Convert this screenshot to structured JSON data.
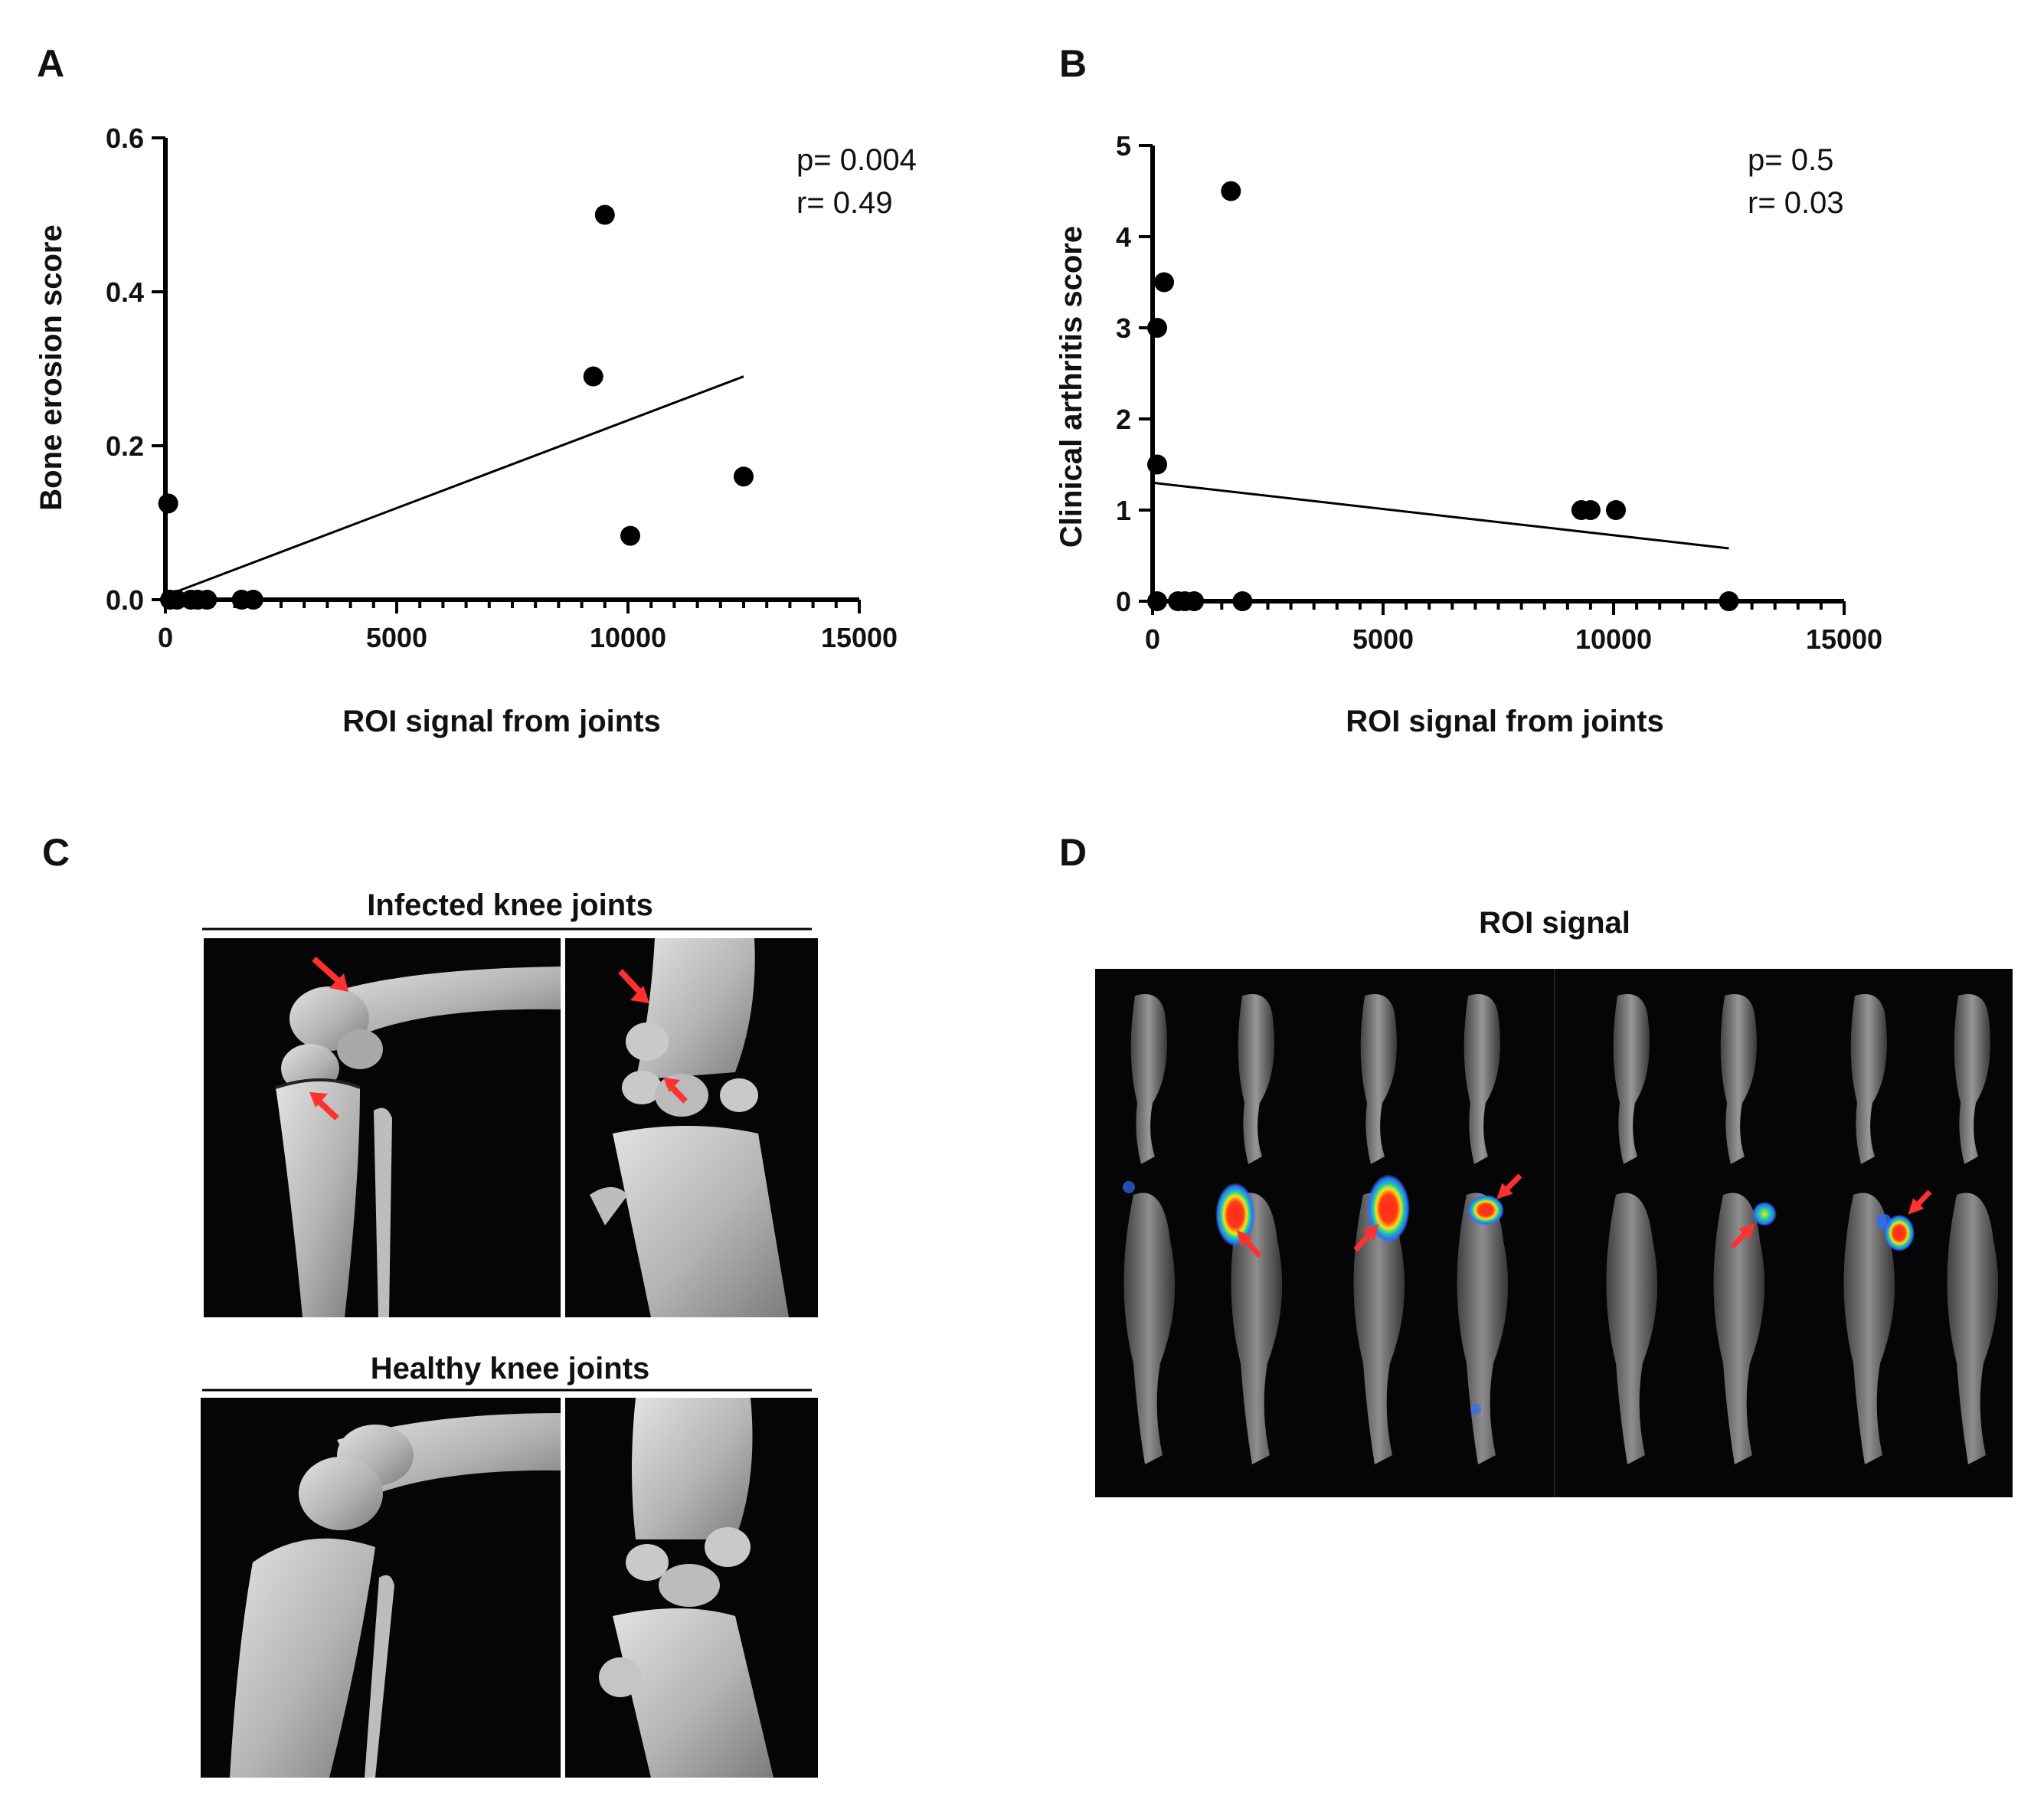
{
  "colors": {
    "points": "#000000",
    "image_background": "#050505",
    "bone": "#bdbdbd",
    "arrow": "#ff3030",
    "heat_low": "#2f6dff",
    "heat_mid": "#18d0a0",
    "heat_high": "#ff2a1a"
  },
  "panel_a": {
    "letter": "A",
    "stats": {
      "p": "p= 0.004",
      "r": "r= 0.49"
    }
  },
  "panel_b": {
    "letter": "B",
    "stats": {
      "p": "p= 0.5",
      "r": "r= 0.03"
    }
  },
  "panel_c": {
    "letter": "C",
    "infected_title": "Infected knee joints",
    "healthy_title": "Healthy knee joints"
  },
  "panel_d": {
    "letter": "D",
    "title": "ROI signal"
  },
  "chart_data": [
    {
      "id": "A",
      "type": "scatter",
      "title": "",
      "xlabel": "ROI signal from joints",
      "ylabel": "Bone erosion score",
      "xlim": [
        0,
        15000
      ],
      "ylim": [
        0,
        0.6
      ],
      "x_ticks": [
        0,
        5000,
        10000,
        15000
      ],
      "x_tick_labels": [
        "0",
        "5000",
        "10000",
        "15000"
      ],
      "y_ticks": [
        0,
        0.2,
        0.4,
        0.6
      ],
      "y_tick_labels": [
        "0.0",
        "0.2",
        "0.4",
        "0.6"
      ],
      "x_minor_step": 500,
      "points": [
        {
          "x": 60,
          "y": 0.125
        },
        {
          "x": 100,
          "y": 0.0
        },
        {
          "x": 250,
          "y": 0.0
        },
        {
          "x": 550,
          "y": 0.0
        },
        {
          "x": 700,
          "y": 0.0
        },
        {
          "x": 900,
          "y": 0.0
        },
        {
          "x": 1650,
          "y": 0.0
        },
        {
          "x": 1900,
          "y": 0.0
        },
        {
          "x": 9250,
          "y": 0.29
        },
        {
          "x": 9500,
          "y": 0.5
        },
        {
          "x": 10050,
          "y": 0.083
        },
        {
          "x": 12500,
          "y": 0.16
        }
      ],
      "fit_line": {
        "x": [
          0,
          12500
        ],
        "y": [
          0.005,
          0.29
        ]
      },
      "grid": false,
      "legend": "none"
    },
    {
      "id": "B",
      "type": "scatter",
      "title": "",
      "xlabel": "ROI signal from joints",
      "ylabel": "Clinical arthritis score",
      "xlim": [
        0,
        15000
      ],
      "ylim": [
        0,
        5
      ],
      "x_ticks": [
        0,
        5000,
        10000,
        15000
      ],
      "x_tick_labels": [
        "0",
        "5000",
        "10000",
        "15000"
      ],
      "y_ticks": [
        0,
        1,
        2,
        3,
        4,
        5
      ],
      "y_tick_labels": [
        "0",
        "1",
        "2",
        "3",
        "4",
        "5"
      ],
      "x_minor_step": 500,
      "points": [
        {
          "x": 100,
          "y": 3.0
        },
        {
          "x": 250,
          "y": 3.5
        },
        {
          "x": 100,
          "y": 1.5
        },
        {
          "x": 100,
          "y": 0.0
        },
        {
          "x": 550,
          "y": 0.0
        },
        {
          "x": 700,
          "y": 0.0
        },
        {
          "x": 900,
          "y": 0.0
        },
        {
          "x": 1700,
          "y": 4.5
        },
        {
          "x": 1950,
          "y": 0.0
        },
        {
          "x": 9300,
          "y": 1.0
        },
        {
          "x": 9500,
          "y": 1.0
        },
        {
          "x": 10050,
          "y": 1.0
        },
        {
          "x": 12500,
          "y": 0.0
        }
      ],
      "fit_line": {
        "x": [
          0,
          12500
        ],
        "y": [
          1.3,
          0.58
        ]
      },
      "grid": false,
      "legend": "none"
    }
  ]
}
